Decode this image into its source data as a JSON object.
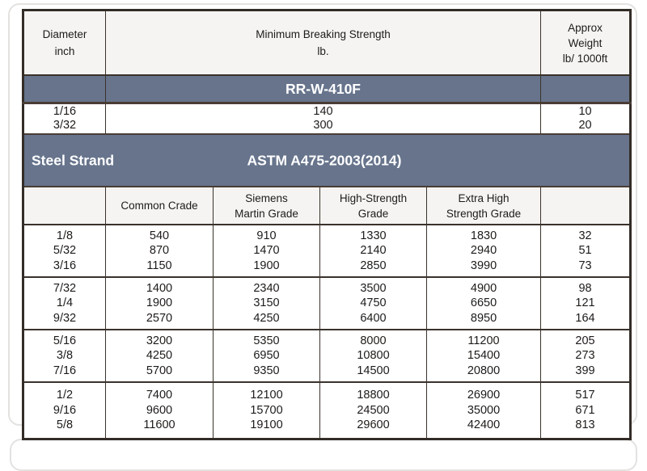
{
  "colors": {
    "band_background": "#67748C",
    "header_background": "#f5f4f2",
    "border_dark": "#3a322c",
    "card_border": "#e4e2e0",
    "band_text": "#ffffff"
  },
  "table": {
    "header": {
      "diameter": "Diameter\ninch",
      "strength": "Minimum Breaking Strength\nlb.",
      "weight": "Approx\nWeight\nlb/ 1000ft"
    },
    "spec1": {
      "label": "RR-W-410F"
    },
    "spec1_rows": [
      [
        "1/16",
        "140",
        "10"
      ],
      [
        "3/32",
        "300",
        "20"
      ]
    ],
    "spec2": {
      "category": "Steel Strand",
      "label": "ASTM A475-2003(2014)"
    },
    "grade_headers": [
      "",
      "Common Crade",
      "Siemens\nMartin Grade",
      "High-Strength\nGrade",
      "Extra High\nStrength Grade",
      ""
    ],
    "columns": [
      "diameter_inch",
      "common_grade",
      "siemens_martin_grade",
      "high_strength_grade",
      "extra_high_strength_grade",
      "weight_lb_per_1000ft"
    ],
    "groups": [
      [
        [
          "1/8",
          "540",
          "910",
          "1330",
          "1830",
          "32"
        ],
        [
          "5/32",
          "870",
          "1470",
          "2140",
          "2940",
          "51"
        ],
        [
          "3/16",
          "1150",
          "1900",
          "2850",
          "3990",
          "73"
        ]
      ],
      [
        [
          "7/32",
          "1400",
          "2340",
          "3500",
          "4900",
          "98"
        ],
        [
          "1/4",
          "1900",
          "3150",
          "4750",
          "6650",
          "121"
        ],
        [
          "9/32",
          "2570",
          "4250",
          "6400",
          "8950",
          "164"
        ]
      ],
      [
        [
          "5/16",
          "3200",
          "5350",
          "8000",
          "11200",
          "205"
        ],
        [
          "3/8",
          "4250",
          "6950",
          "10800",
          "15400",
          "273"
        ],
        [
          "7/16",
          "5700",
          "9350",
          "14500",
          "20800",
          "399"
        ]
      ],
      [
        [
          "1/2",
          "7400",
          "12100",
          "18800",
          "26900",
          "517"
        ],
        [
          "9/16",
          "9600",
          "15700",
          "24500",
          "35000",
          "671"
        ],
        [
          "5/8",
          "11600",
          "19100",
          "29600",
          "42400",
          "813"
        ]
      ]
    ]
  }
}
